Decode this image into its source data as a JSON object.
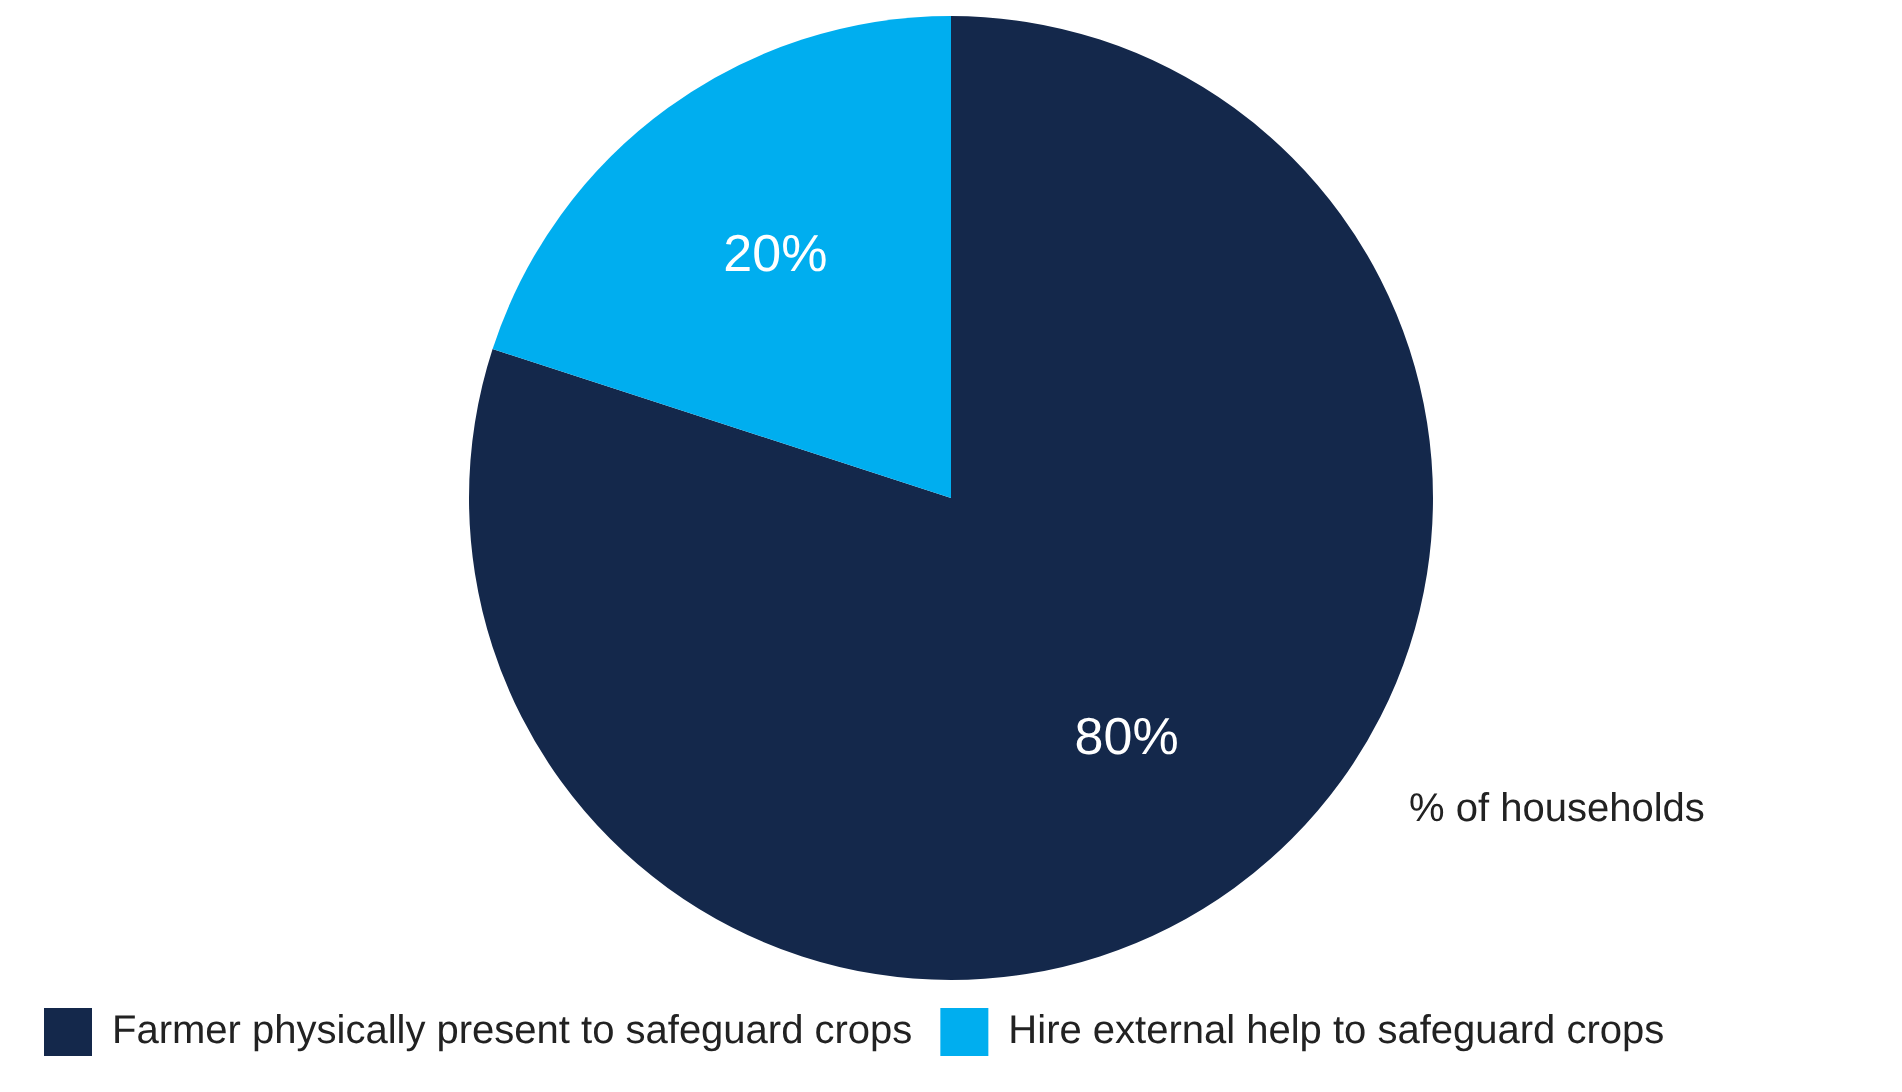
{
  "chart_data": {
    "type": "pie",
    "categories": [
      "Farmer physically present to safeguard crops",
      "Hire external help to safeguard crops"
    ],
    "values": [
      80,
      20
    ],
    "colors": [
      "#14284b",
      "#00aeef"
    ],
    "value_labels": [
      "80%",
      "20%"
    ],
    "legend": "bottom",
    "annotations": [
      "% of households"
    ]
  }
}
